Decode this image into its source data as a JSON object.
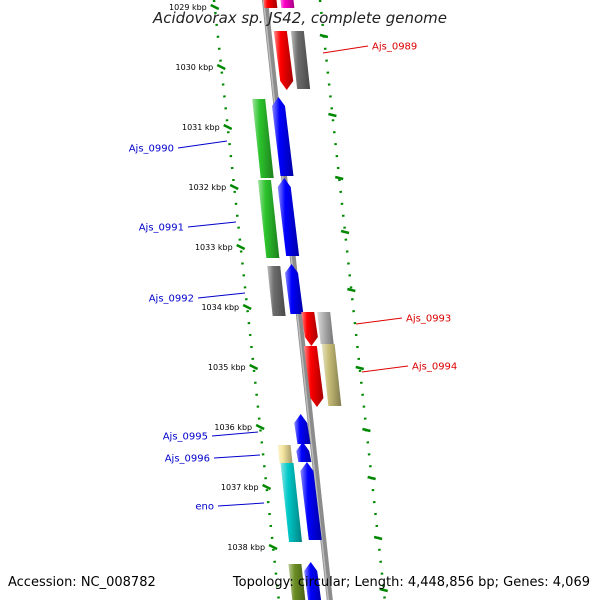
{
  "title": "Acidovorax sp. JS42, complete genome",
  "footer": {
    "accession": "Accession: NC_008782",
    "topology": "Topology: circular; Length: 4,448,856 bp; Genes: 4,069"
  },
  "colors": {
    "red": "#ff0000",
    "gray": "#6e6e6e",
    "light_gray": "#b4b4b4",
    "green": "#2cc42c",
    "blue": "#0000ff",
    "khaki": "#c8be78",
    "cyan": "#00c8c8",
    "pale_yellow": "#f5e6a0",
    "olive": "#6b8e23",
    "magenta": "#ff00c8",
    "label_blue": "#0000cc",
    "label_red": "#dd0000",
    "tick_green": "#008800"
  },
  "ticks": [
    {
      "label": "1029 kbp"
    },
    {
      "label": "1030 kbp"
    },
    {
      "label": "1031 kbp"
    },
    {
      "label": "1032 kbp"
    },
    {
      "label": "1033 kbp"
    },
    {
      "label": "1034 kbp"
    },
    {
      "label": "1035 kbp"
    },
    {
      "label": "1036 kbp"
    },
    {
      "label": "1037 kbp"
    },
    {
      "label": "1038 kbp"
    }
  ],
  "gene_labels": [
    {
      "name": "Ajs_0989",
      "side": "right"
    },
    {
      "name": "Ajs_0990",
      "side": "left"
    },
    {
      "name": "Ajs_0991",
      "side": "left"
    },
    {
      "name": "Ajs_0992",
      "side": "left"
    },
    {
      "name": "Ajs_0993",
      "side": "right"
    },
    {
      "name": "Ajs_0994",
      "side": "right"
    },
    {
      "name": "Ajs_0995",
      "side": "left"
    },
    {
      "name": "Ajs_0996",
      "side": "left"
    },
    {
      "name": "eno",
      "side": "left"
    }
  ]
}
